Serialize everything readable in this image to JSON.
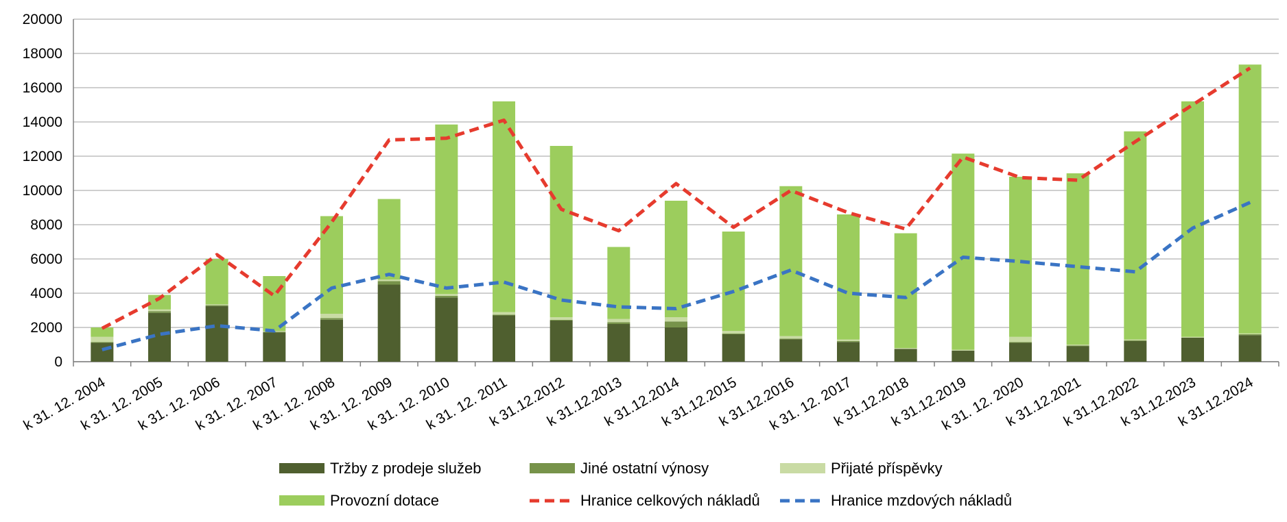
{
  "chart_data": {
    "type": "bar",
    "stacked": true,
    "title": "",
    "xlabel": "",
    "ylabel": "",
    "ylim": [
      0,
      20000
    ],
    "yticks": [
      0,
      2000,
      4000,
      6000,
      8000,
      10000,
      12000,
      14000,
      16000,
      18000,
      20000
    ],
    "grid": true,
    "legend_position": "bottom",
    "categories": [
      "k 31. 12. 2004",
      "k 31. 12. 2005",
      "k 31. 12. 2006",
      "k 31. 12. 2007",
      "k 31. 12. 2008",
      "k 31. 12. 2009",
      "k 31. 12. 2010",
      "k 31. 12. 2011",
      "k 31.12.2012",
      "k 31.12.2013",
      "k 31.12.2014",
      "k 31.12.2015",
      "k 31.12.2016",
      "k 31. 12. 2017",
      "k 31.12.2018",
      "k 31.12.2019",
      "k 31. 12. 2020",
      "k 31.12.2021",
      "k 31.12.2022",
      "k 31.12.2023",
      "k 31.12.2024"
    ],
    "series": [
      {
        "name": "Tržby z prodeje služeb",
        "kind": "bar",
        "color": "#4f5f2f",
        "values": [
          1100,
          2850,
          3250,
          1700,
          2450,
          4500,
          3750,
          2700,
          2400,
          2200,
          2000,
          1600,
          1300,
          1150,
          750,
          650,
          1100,
          900,
          1200,
          1400,
          1550
        ]
      },
      {
        "name": "Jiné ostatní výnosy",
        "kind": "bar",
        "color": "#77934a",
        "values": [
          50,
          100,
          50,
          50,
          100,
          200,
          100,
          50,
          50,
          100,
          350,
          50,
          50,
          50,
          0,
          0,
          50,
          50,
          50,
          0,
          50
        ]
      },
      {
        "name": "Přijaté příspěvky",
        "kind": "bar",
        "color": "#c9dba4",
        "values": [
          300,
          100,
          50,
          50,
          250,
          100,
          100,
          150,
          150,
          200,
          250,
          150,
          150,
          100,
          50,
          50,
          300,
          50,
          50,
          50,
          50
        ]
      },
      {
        "name": "Provozní dotace",
        "kind": "bar",
        "color": "#9ccd5d",
        "values": [
          550,
          850,
          2650,
          3200,
          5700,
          4700,
          9900,
          12300,
          10000,
          4200,
          6800,
          5800,
          8750,
          7300,
          6700,
          11450,
          9350,
          10000,
          12150,
          13750,
          15700
        ]
      },
      {
        "name": "Hranice celkových nákladů",
        "kind": "line",
        "color": "#e63b2e",
        "dash": true,
        "values": [
          1950,
          3700,
          6250,
          3850,
          8150,
          12950,
          13050,
          14100,
          8900,
          7650,
          10400,
          7850,
          10000,
          8700,
          7750,
          11950,
          10750,
          10600,
          12850,
          15000,
          17150
        ]
      },
      {
        "name": "Hranice mzdových nákladů",
        "kind": "line",
        "color": "#3a74c4",
        "dash": true,
        "values": [
          700,
          1600,
          2100,
          1800,
          4300,
          5100,
          4300,
          4650,
          3600,
          3200,
          3100,
          4100,
          5350,
          4000,
          3750,
          6100,
          5850,
          5550,
          5250,
          7800,
          9300
        ]
      }
    ]
  }
}
